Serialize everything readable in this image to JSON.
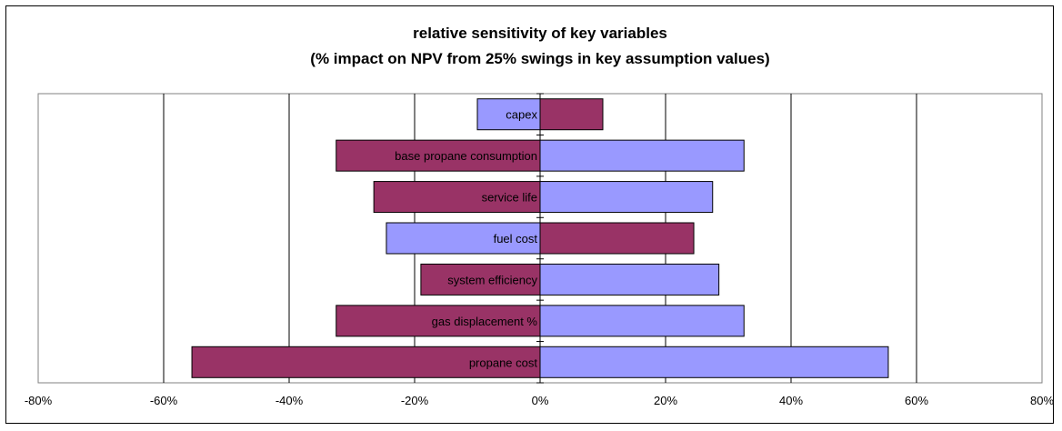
{
  "chart_data": {
    "type": "bar",
    "orientation": "horizontal-tornado",
    "title": "relative sensitivity of key variables",
    "subtitle": "(% impact on NPV from 25% swings in key assumption values)",
    "xlim": [
      -0.8,
      0.8
    ],
    "xticks": [
      "-80%",
      "-60%",
      "-40%",
      "-20%",
      "0%",
      "20%",
      "40%",
      "60%",
      "80%"
    ],
    "xtick_values": [
      -0.8,
      -0.6,
      -0.4,
      -0.2,
      0,
      0.2,
      0.4,
      0.6,
      0.8
    ],
    "grid": "vertical",
    "colors": {
      "maroon": "#993366",
      "periwinkle": "#9999ff",
      "plot_bg": "#ffffff"
    },
    "categories": [
      "capex",
      "base propane consumption",
      "service life",
      "fuel cost",
      "system efficiency",
      "gas displacement %",
      "propane cost"
    ],
    "bars": [
      {
        "label": "capex",
        "left": -0.1,
        "right": 0.1,
        "left_color": "periwinkle",
        "right_color": "maroon"
      },
      {
        "label": "base propane consumption",
        "left": -0.325,
        "right": 0.325,
        "left_color": "maroon",
        "right_color": "periwinkle"
      },
      {
        "label": "service life",
        "left": -0.265,
        "right": 0.275,
        "left_color": "maroon",
        "right_color": "periwinkle"
      },
      {
        "label": "fuel cost",
        "left": -0.245,
        "right": 0.245,
        "left_color": "periwinkle",
        "right_color": "maroon"
      },
      {
        "label": "system efficiency",
        "left": -0.19,
        "right": 0.285,
        "left_color": "maroon",
        "right_color": "periwinkle"
      },
      {
        "label": "gas displacement %",
        "left": -0.325,
        "right": 0.325,
        "left_color": "maroon",
        "right_color": "periwinkle"
      },
      {
        "label": "propane cost",
        "left": -0.555,
        "right": 0.555,
        "left_color": "maroon",
        "right_color": "periwinkle"
      }
    ]
  }
}
